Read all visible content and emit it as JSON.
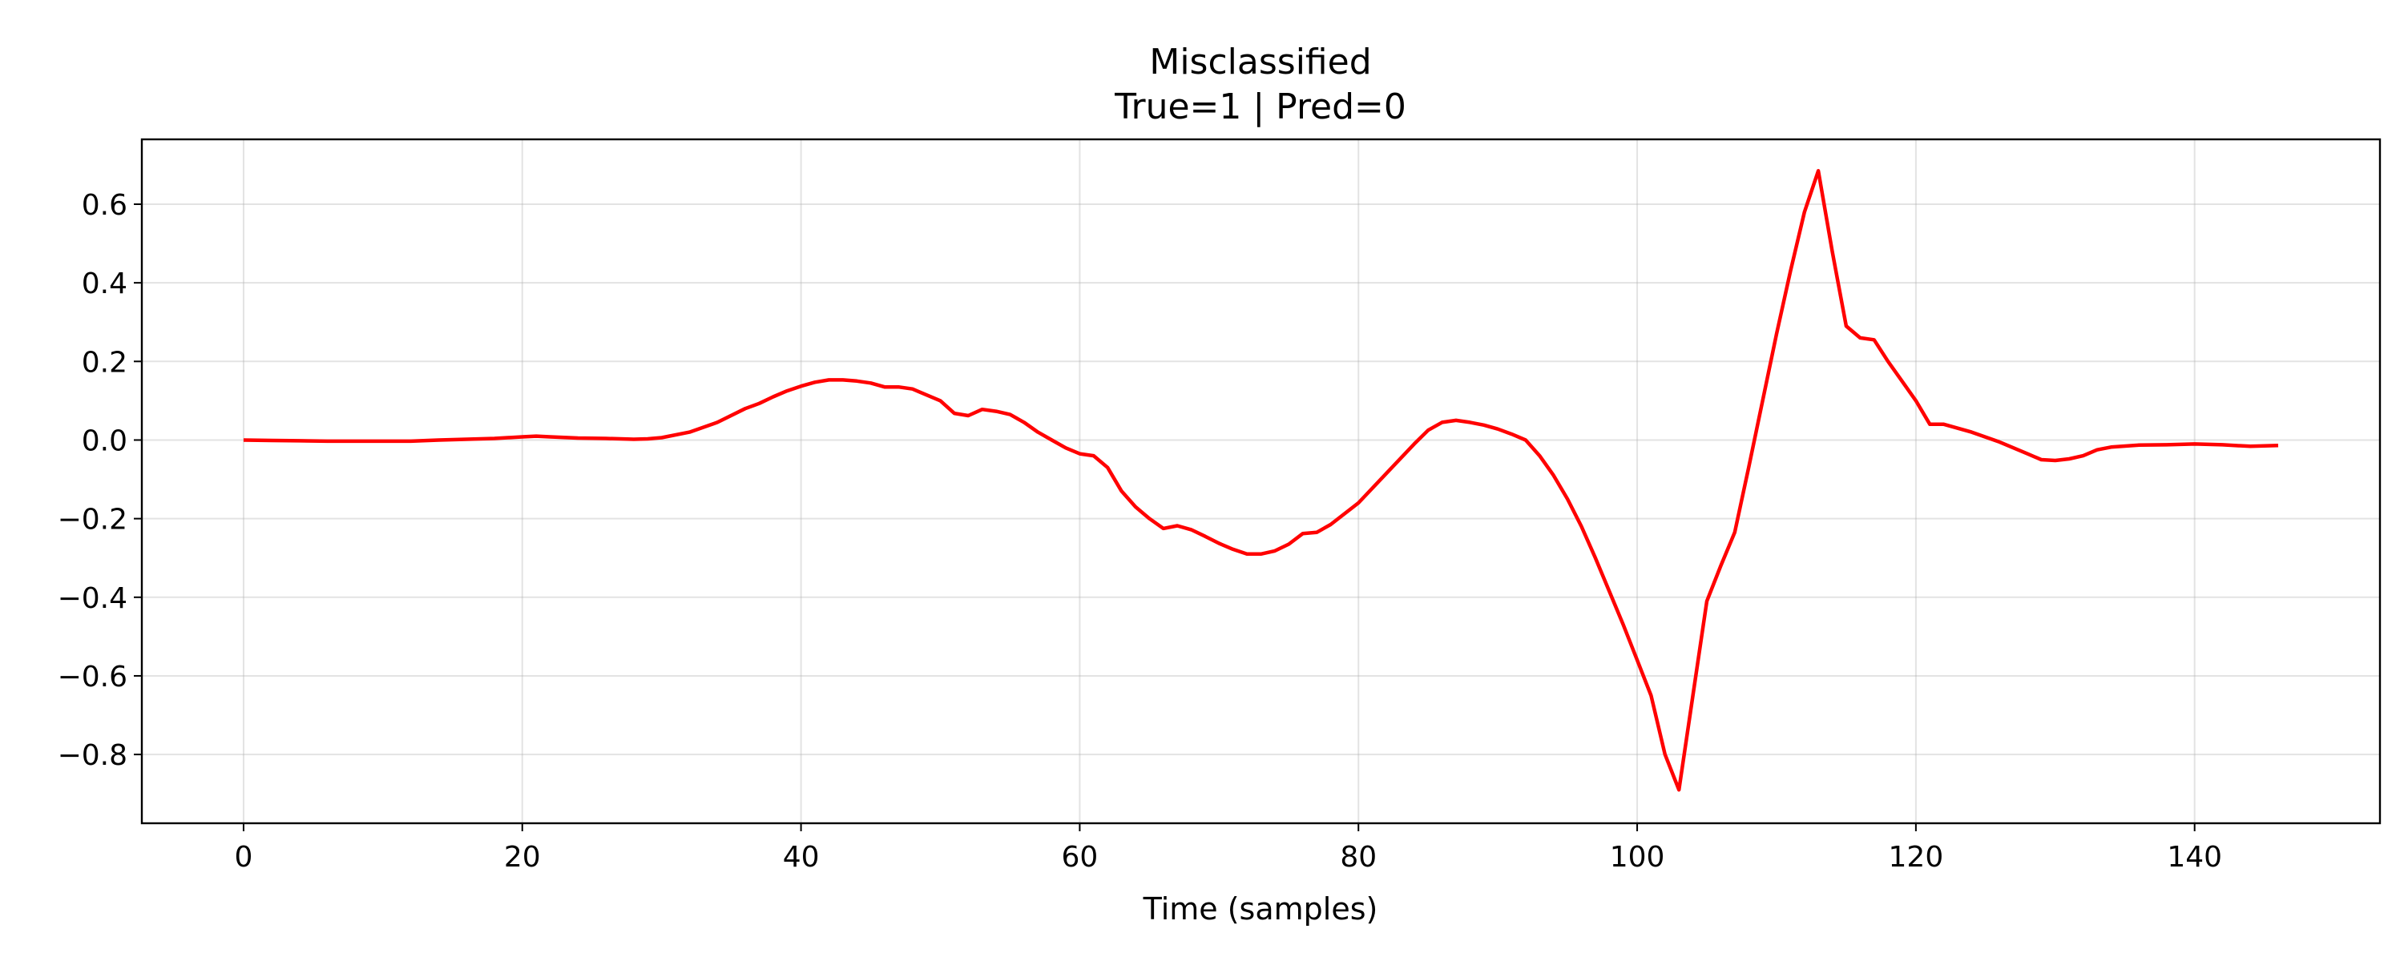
{
  "chart_data": {
    "type": "line",
    "title": "Misclassified",
    "subtitle": "True=1 | Pred=0",
    "xlabel": "Time (samples)",
    "ylabel": "",
    "xlim": [
      -7.3,
      153.3
    ],
    "ylim": [
      -0.975,
      0.765
    ],
    "xticks": [
      0,
      20,
      40,
      60,
      80,
      100,
      120,
      140
    ],
    "yticks": [
      -0.8,
      -0.6,
      -0.4,
      -0.2,
      0.0,
      0.2,
      0.4,
      0.6
    ],
    "xtick_labels": [
      "0",
      "20",
      "40",
      "60",
      "80",
      "100",
      "120",
      "140"
    ],
    "ytick_labels": [
      "−0.8",
      "−0.6",
      "−0.4",
      "−0.2",
      "0.0",
      "0.2",
      "0.4",
      "0.6"
    ],
    "grid": true,
    "legend": "none",
    "series": [
      {
        "color": "#ff0000",
        "x": [
          0,
          2,
          4,
          6,
          8,
          10,
          12,
          14,
          16,
          18,
          20,
          21,
          22,
          24,
          26,
          28,
          29,
          30,
          32,
          34,
          36,
          37,
          38,
          39,
          40,
          41,
          42,
          43,
          44,
          45,
          46,
          47,
          48,
          50,
          51,
          52,
          53,
          54,
          55,
          56,
          57,
          58,
          59,
          60,
          61,
          62,
          63,
          64,
          65,
          66,
          67,
          68,
          69,
          70,
          71,
          72,
          73,
          74,
          75,
          76,
          77,
          78,
          80,
          82,
          84,
          85,
          86,
          87,
          88,
          89,
          90,
          91,
          92,
          93,
          94,
          95,
          96,
          97,
          98,
          99,
          100,
          101,
          102,
          103,
          104,
          105,
          106,
          107,
          108,
          109,
          110,
          111,
          112,
          113,
          114,
          115,
          116,
          117,
          118,
          119,
          120,
          121,
          122,
          124,
          126,
          128,
          129,
          130,
          131,
          132,
          133,
          134,
          136,
          138,
          140,
          142,
          144,
          146
        ],
        "y": [
          0.0,
          -0.001,
          -0.002,
          -0.003,
          -0.003,
          -0.003,
          -0.003,
          0.0,
          0.002,
          0.004,
          0.008,
          0.01,
          0.008,
          0.005,
          0.004,
          0.002,
          0.003,
          0.006,
          0.02,
          0.045,
          0.08,
          0.093,
          0.11,
          0.125,
          0.137,
          0.147,
          0.153,
          0.153,
          0.15,
          0.145,
          0.135,
          0.135,
          0.13,
          0.1,
          0.068,
          0.062,
          0.078,
          0.073,
          0.065,
          0.045,
          0.02,
          0.0,
          -0.02,
          -0.035,
          -0.04,
          -0.07,
          -0.13,
          -0.17,
          -0.2,
          -0.225,
          -0.218,
          -0.228,
          -0.245,
          -0.263,
          -0.278,
          -0.29,
          -0.29,
          -0.282,
          -0.265,
          -0.238,
          -0.235,
          -0.215,
          -0.16,
          -0.085,
          -0.01,
          0.025,
          0.045,
          0.05,
          0.045,
          0.038,
          0.028,
          0.015,
          0.0,
          -0.04,
          -0.09,
          -0.15,
          -0.22,
          -0.3,
          -0.385,
          -0.47,
          -0.56,
          -0.65,
          -0.8,
          -0.89,
          -0.65,
          -0.41,
          -0.32,
          -0.235,
          -0.07,
          0.1,
          0.27,
          0.43,
          0.58,
          0.685,
          0.48,
          0.29,
          0.26,
          0.255,
          0.2,
          0.15,
          0.1,
          0.04,
          0.04,
          0.02,
          -0.005,
          -0.035,
          -0.05,
          -0.052,
          -0.048,
          -0.04,
          -0.025,
          -0.018,
          -0.013,
          -0.012,
          -0.01,
          -0.012,
          -0.016,
          -0.014
        ]
      }
    ]
  }
}
